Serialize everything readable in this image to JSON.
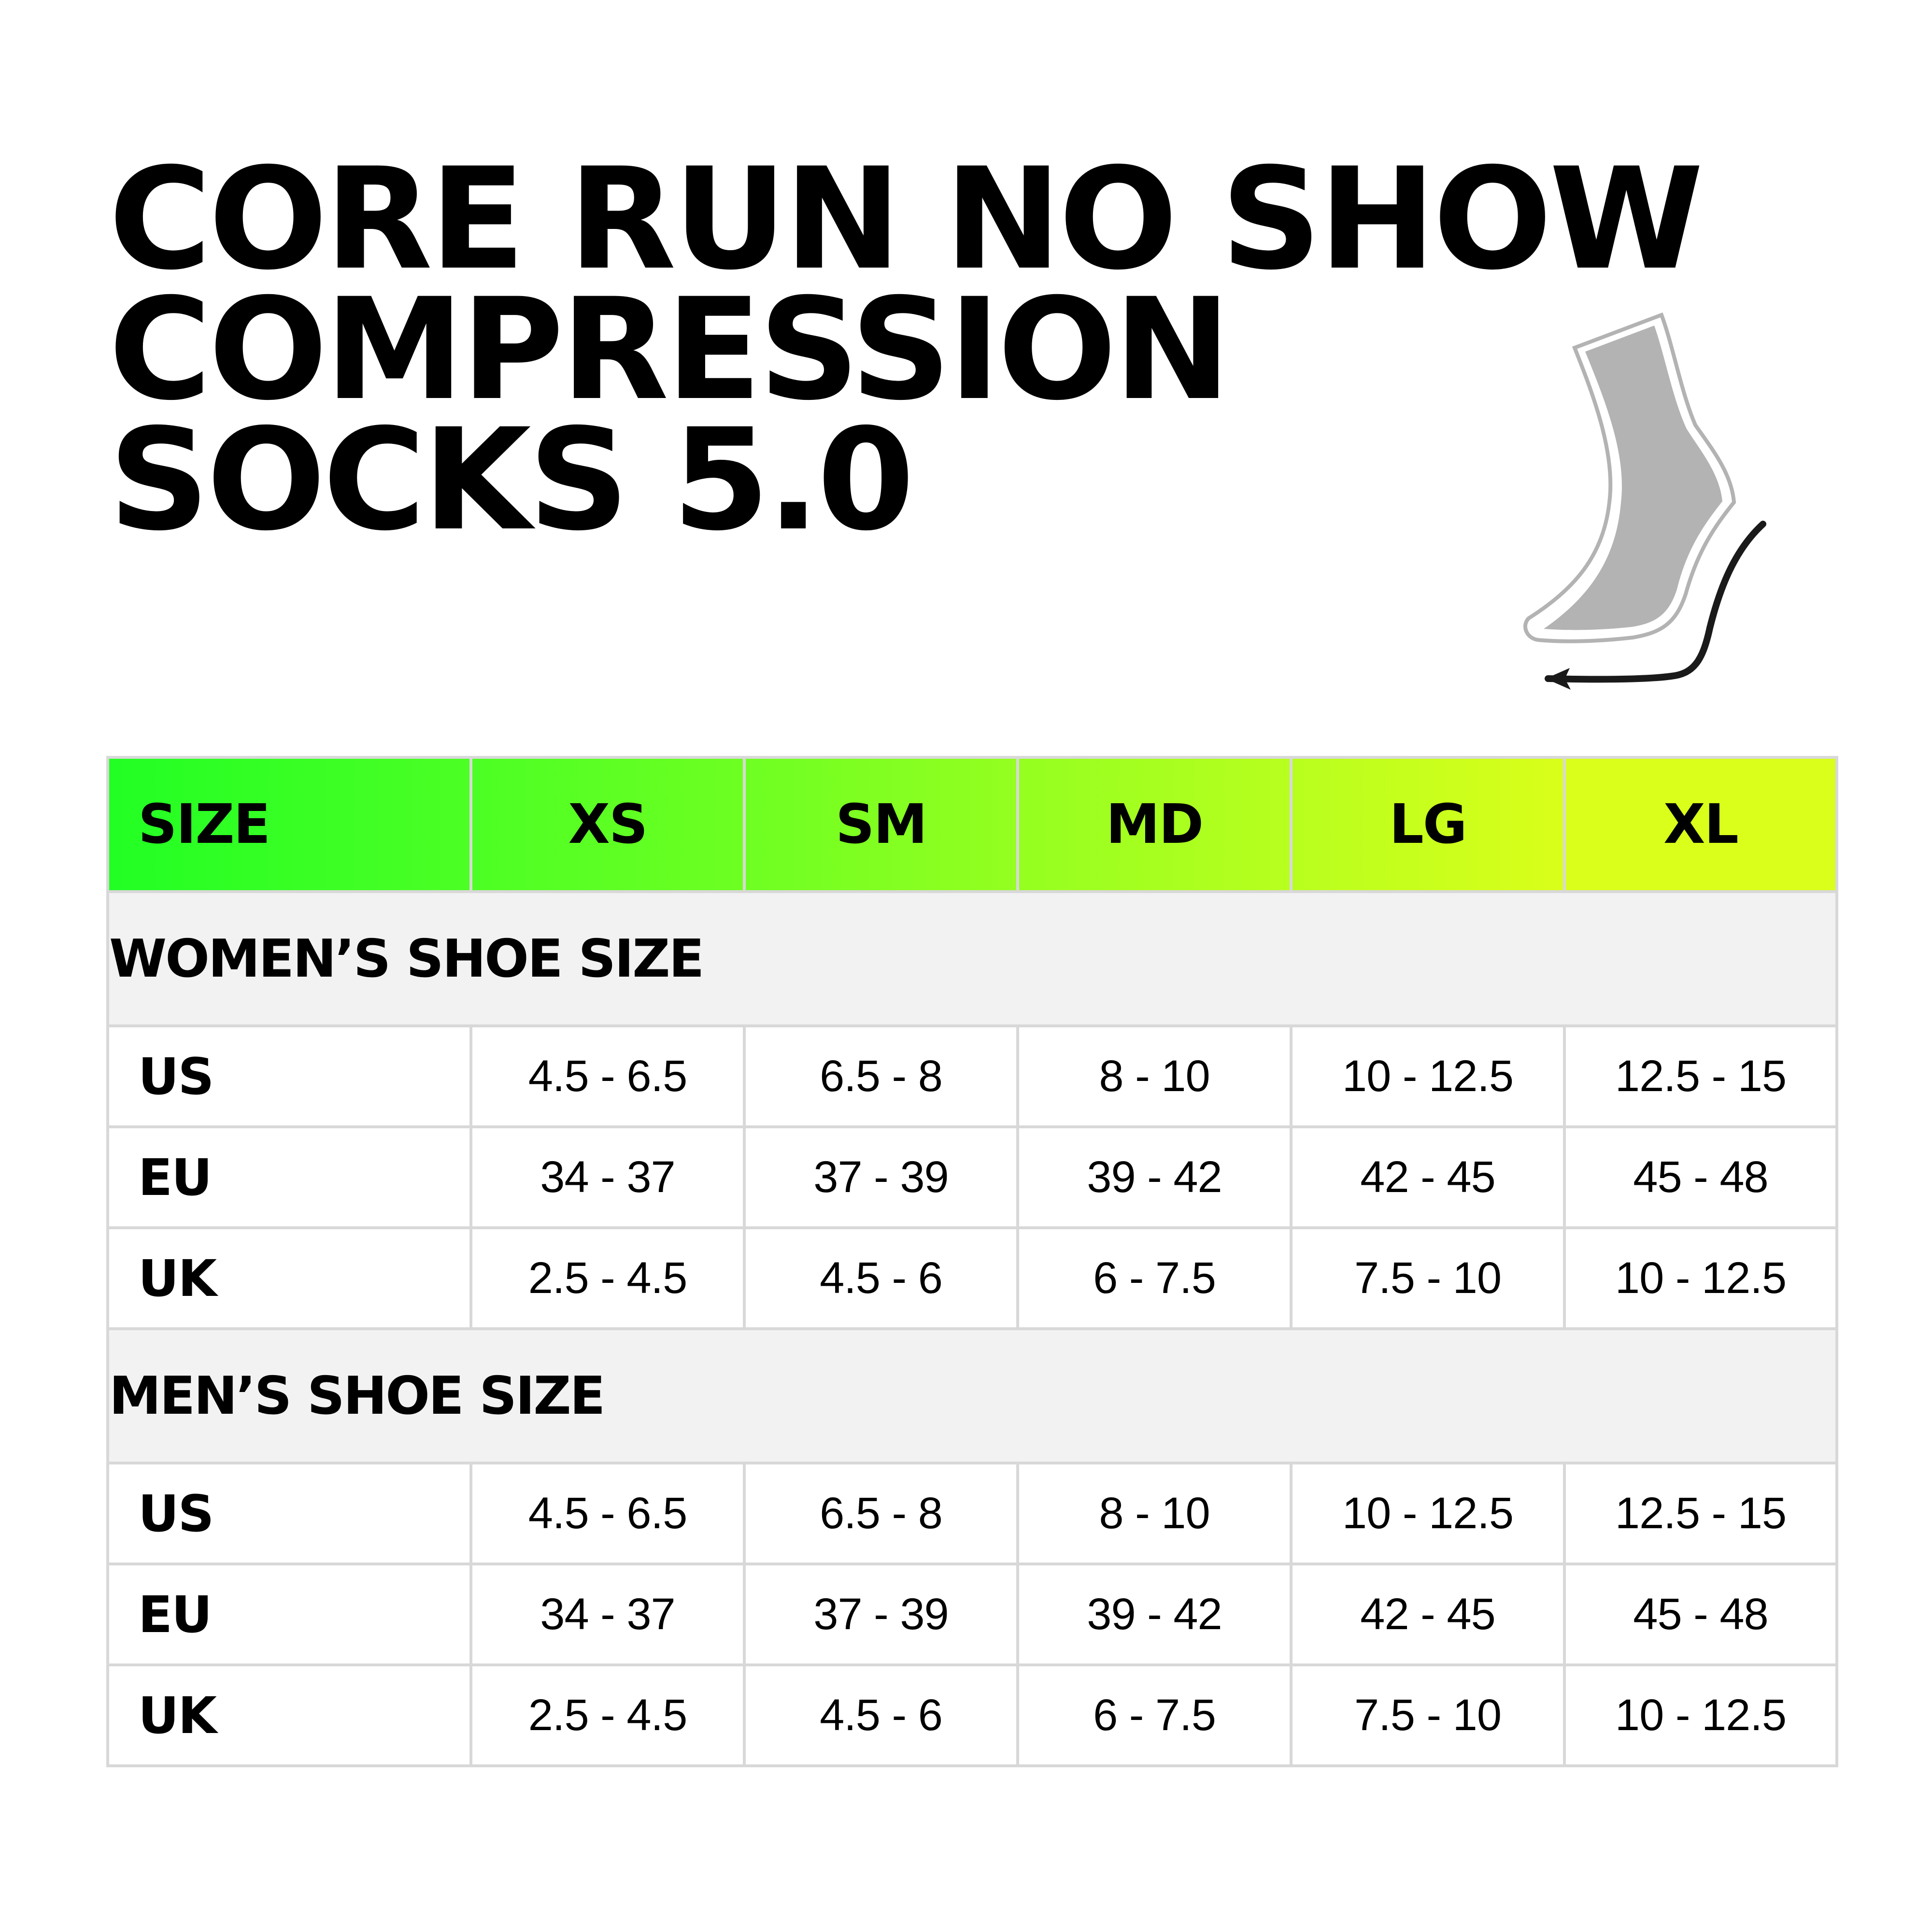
{
  "title": {
    "line1": "CORE RUN NO SHOW",
    "line2": "COMPRESSION",
    "line3": "SOCKS 5.0"
  },
  "illustration": {
    "icon": "no-show-sock-icon"
  },
  "colors": {
    "header_start": "#22ff22",
    "header_end": "#d9ff1a",
    "section_bg": "#f2f2f2",
    "border": "#d8d8d8"
  },
  "table": {
    "header": [
      "SIZE",
      "XS",
      "SM",
      "MD",
      "LG",
      "XL"
    ],
    "sections": [
      {
        "title": "WOMEN’S SHOE SIZE",
        "rows": [
          {
            "label": "US",
            "values": [
              "4.5 - 6.5",
              "6.5 - 8",
              "8 - 10",
              "10 - 12.5",
              "12.5 - 15"
            ]
          },
          {
            "label": "EU",
            "values": [
              "34 - 37",
              "37 - 39",
              "39 - 42",
              "42 - 45",
              "45 - 48"
            ]
          },
          {
            "label": "UK",
            "values": [
              "2.5 - 4.5",
              "4.5 - 6",
              "6 - 7.5",
              "7.5 - 10",
              "10 - 12.5"
            ]
          }
        ]
      },
      {
        "title": "MEN’S SHOE SIZE",
        "rows": [
          {
            "label": "US",
            "values": [
              "4.5 - 6.5",
              "6.5 - 8",
              "8 - 10",
              "10 - 12.5",
              "12.5 - 15"
            ]
          },
          {
            "label": "EU",
            "values": [
              "34 - 37",
              "37 - 39",
              "39 - 42",
              "42 - 45",
              "45 - 48"
            ]
          },
          {
            "label": "UK",
            "values": [
              "2.5 - 4.5",
              "4.5 - 6",
              "6 - 7.5",
              "7.5 - 10",
              "10 - 12.5"
            ]
          }
        ]
      }
    ]
  }
}
